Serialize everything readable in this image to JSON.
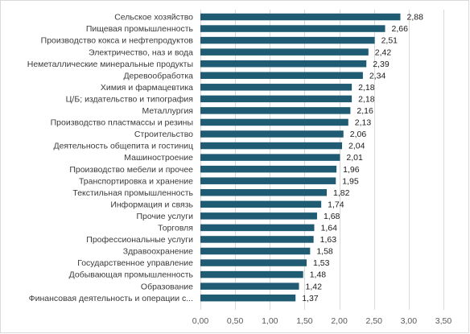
{
  "chart_data": {
    "type": "bar",
    "orientation": "horizontal",
    "title": "",
    "xlabel": "",
    "ylabel": "",
    "categories": [
      "Сельское хозяйство",
      "Пищевая промышленность",
      "Производство кокса и нефтепродуктов",
      "Электричество, наз и вода",
      "Неметаллические  минеральные продукты",
      "Деревообработка",
      "Химия и фармацевтика",
      "Ц/Б; издательство и типография",
      "Металлургия",
      "Производство пластмассы и резины",
      "Строительство",
      "Деятельность общепита и гостиниц",
      "Машиностроение",
      "Производство мебели и прочее",
      "Транспортировка и хранение",
      "Текстильная промышленность",
      "Информация и связь",
      "Прочие услуги",
      "Торговля",
      "Профессиональные услуги",
      "Здравоохранение",
      "Государственное управление",
      "Добывающая промышленность",
      "Образование",
      "Финансовая деятельность и операции с..."
    ],
    "values": [
      2.88,
      2.66,
      2.51,
      2.42,
      2.39,
      2.34,
      2.18,
      2.18,
      2.16,
      2.13,
      2.06,
      2.04,
      2.01,
      1.96,
      1.95,
      1.82,
      1.74,
      1.68,
      1.64,
      1.63,
      1.58,
      1.53,
      1.48,
      1.42,
      1.37
    ],
    "value_labels": [
      "2,88",
      "2,66",
      "2,51",
      "2,42",
      "2,39",
      "2,34",
      "2,18",
      "2,18",
      "2,16",
      "2,13",
      "2,06",
      "2,04",
      "2,01",
      "1,96",
      "1,95",
      "1,82",
      "1,74",
      "1,68",
      "1,64",
      "1,63",
      "1,58",
      "1,53",
      "1,48",
      "1,42",
      "1,37"
    ],
    "xlim": [
      0,
      3.5
    ],
    "ticks": [
      0,
      0.5,
      1,
      1.5,
      2,
      2.5,
      3,
      3.5
    ],
    "tick_labels": [
      "0,00",
      "0,50",
      "1,00",
      "1,50",
      "2,00",
      "2,50",
      "3,00",
      "3,50"
    ],
    "grid": true,
    "legend": "none",
    "bar_color": "#1f5c73"
  }
}
